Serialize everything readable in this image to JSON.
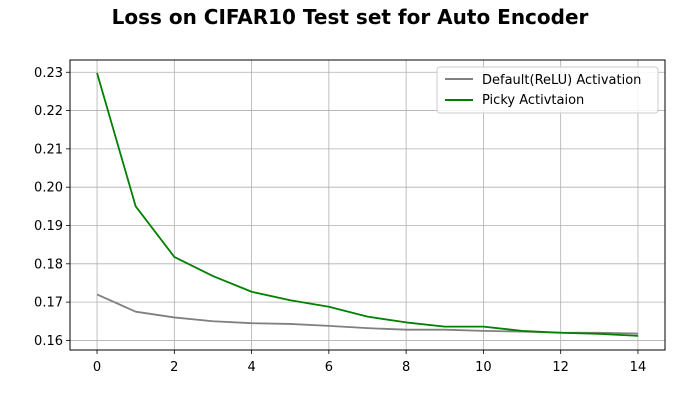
{
  "chart_data": {
    "type": "line",
    "title": "Loss on CIFAR10 Test set for Auto Encoder",
    "xlabel": "",
    "ylabel": "",
    "x": [
      0,
      1,
      2,
      3,
      4,
      5,
      6,
      7,
      8,
      9,
      10,
      11,
      12,
      13,
      14
    ],
    "xlim": [
      -0.7,
      14.7
    ],
    "ylim": [
      0.1575,
      0.2332
    ],
    "xticks": [
      0,
      2,
      4,
      6,
      8,
      10,
      12,
      14
    ],
    "yticks": [
      0.16,
      0.17,
      0.18,
      0.19,
      0.2,
      0.21,
      0.22,
      0.23
    ],
    "ytick_labels": [
      "0.16",
      "0.17",
      "0.18",
      "0.19",
      "0.20",
      "0.21",
      "0.22",
      "0.23"
    ],
    "grid": true,
    "legend_position": "top-right",
    "series": [
      {
        "name": "Default(ReLU) Activation",
        "color": "#808080",
        "values": [
          0.172,
          0.1675,
          0.166,
          0.165,
          0.1645,
          0.1643,
          0.1638,
          0.1632,
          0.1628,
          0.1628,
          0.1625,
          0.1623,
          0.162,
          0.162,
          0.1618
        ]
      },
      {
        "name": "Picky Activtaion",
        "color": "#008000",
        "values": [
          0.2298,
          0.195,
          0.1818,
          0.1768,
          0.1727,
          0.1705,
          0.1688,
          0.1662,
          0.1647,
          0.1636,
          0.1636,
          0.1625,
          0.162,
          0.1617,
          0.1612
        ]
      }
    ]
  }
}
